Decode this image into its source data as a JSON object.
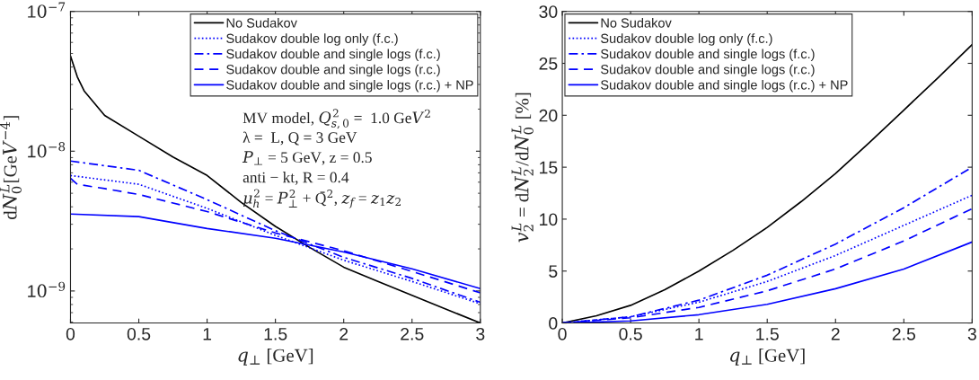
{
  "chart_data": [
    {
      "type": "line",
      "xlabel": "q$_{⊥}$ [GeV]",
      "ylabel": "dN$^{L}$$_{0}$[GeV$^{−4}$]",
      "log": "y",
      "xlim": [
        0,
        3
      ],
      "ylim": [
        5.9e-10,
        1e-07
      ],
      "xticks": [
        0,
        0.5,
        1,
        1.5,
        2,
        2.5,
        3
      ],
      "yticks": [
        {
          "value": 1e-09,
          "label": "10$^{−9}$"
        },
        {
          "value": 1e-08,
          "label": "10$^{−8}$"
        },
        {
          "value": 1e-07,
          "label": "10$^{−7}$"
        }
      ],
      "legend": "top right",
      "annotations": [
        "MV model, Q$^{2}$$_{s,0}$ =  1.0 GeV$^{2}$",
        "λ =  L, Q = 3 GeV",
        "P$_{⊥}$ = 5 GeV, z = 0.5",
        "anti − kt, R = 0.4",
        "μ$^{2}$$_{h}$ = P$^{2}$$_{⊥}$ + Q̄$^{2}$, z$_{f}$ = z$_{1}$z$_{2}$"
      ],
      "series": [
        {
          "name": "No Sudakov",
          "color": "#000000",
          "line_style": "solid",
          "x": [
            0,
            0.05,
            0.1,
            0.25,
            0.5,
            0.75,
            1,
            1.25,
            1.5,
            1.75,
            2,
            2.25,
            2.5,
            2.75,
            3
          ],
          "values": [
            4.8e-08,
            3.4e-08,
            2.7e-08,
            1.8e-08,
            1.28e-08,
            9.1e-09,
            6.7e-09,
            4.3e-09,
            2.9e-09,
            2.05e-09,
            1.48e-09,
            1.17e-09,
            9.3e-10,
            7.4e-10,
            5.9e-10
          ]
        },
        {
          "name": "Sudakov double log only (f.c.)",
          "color": "#0000ff",
          "line_style": "dotted",
          "x": [
            0,
            0.5,
            1,
            1.5,
            2,
            2.5,
            3
          ],
          "values": [
            6.7e-09,
            5.8e-09,
            3.9e-09,
            2.5e-09,
            1.66e-09,
            1.17e-09,
            8.1e-10
          ]
        },
        {
          "name": "Sudakov double and single logs (f.c.)",
          "color": "#0000ff",
          "line_style": "dashdot",
          "x": [
            0,
            0.5,
            1,
            1.5,
            2,
            2.5,
            3
          ],
          "values": [
            8.5e-09,
            7.3e-09,
            4.5e-09,
            2.7e-09,
            1.74e-09,
            1.23e-09,
            8.3e-10
          ]
        },
        {
          "name": "Sudakov double and single logs (r.c.)",
          "color": "#0000ff",
          "line_style": "dashed",
          "x": [
            0,
            0.05,
            0.25,
            0.5,
            1,
            1.5,
            2,
            2.5,
            3
          ],
          "values": [
            6.4e-09,
            5.8e-09,
            5.4e-09,
            4.9e-09,
            3.7e-09,
            2.6e-09,
            1.94e-09,
            1.38e-09,
            9.7e-10
          ]
        },
        {
          "name": "Sudakov double and single logs (r.c.) + NP",
          "color": "#0000ff",
          "line_style": "solid",
          "x": [
            0,
            0.5,
            1,
            1.5,
            2,
            2.5,
            3
          ],
          "values": [
            3.55e-09,
            3.4e-09,
            2.8e-09,
            2.38e-09,
            1.9e-09,
            1.44e-09,
            1.04e-09
          ]
        }
      ]
    },
    {
      "type": "line",
      "xlabel": "q$_{⊥}$ [GeV]",
      "ylabel": "v$^{L}$$_{2}$ = dN$^{L}$$_{2}$/dN$^{L}$$_{0}$ [%]",
      "xlim": [
        0,
        3
      ],
      "ylim": [
        0,
        30
      ],
      "xticks": [
        0,
        0.5,
        1,
        1.5,
        2,
        2.5,
        3
      ],
      "yticks": [
        0,
        5,
        10,
        15,
        20,
        25,
        30
      ],
      "legend": "top left",
      "series": [
        {
          "name": "No Sudakov",
          "color": "#000000",
          "line_style": "solid",
          "x": [
            0,
            0.25,
            0.5,
            0.75,
            1,
            1.25,
            1.5,
            1.75,
            2,
            2.25,
            2.5,
            2.75,
            3
          ],
          "values": [
            0,
            0.7,
            1.7,
            3.2,
            5.0,
            7.0,
            9.2,
            11.7,
            14.4,
            17.4,
            20.5,
            23.6,
            26.8
          ]
        },
        {
          "name": "Sudakov double log only (f.c.)",
          "color": "#0000ff",
          "line_style": "dotted",
          "x": [
            0,
            0.5,
            1,
            1.5,
            2,
            2.5,
            3
          ],
          "values": [
            0,
            0.6,
            2.0,
            4.0,
            6.5,
            9.4,
            12.3
          ]
        },
        {
          "name": "Sudakov double and single logs (f.c.)",
          "color": "#0000ff",
          "line_style": "dashdot",
          "x": [
            0,
            0.5,
            1,
            1.5,
            2,
            2.5,
            3
          ],
          "values": [
            0,
            0.6,
            2.2,
            4.6,
            7.6,
            11.1,
            15.0
          ]
        },
        {
          "name": "Sudakov double and single logs (r.c.)",
          "color": "#0000ff",
          "line_style": "dashed",
          "x": [
            0,
            0.5,
            1,
            1.5,
            2,
            2.5,
            3
          ],
          "values": [
            0,
            0.5,
            1.5,
            3.1,
            5.2,
            7.9,
            11.0
          ]
        },
        {
          "name": "Sudakov double and single logs (r.c.) + NP",
          "color": "#0000ff",
          "line_style": "solid",
          "x": [
            0,
            0.5,
            1,
            1.5,
            2,
            2.5,
            3
          ],
          "values": [
            0,
            0.2,
            0.8,
            1.8,
            3.3,
            5.2,
            7.8
          ]
        }
      ]
    }
  ]
}
